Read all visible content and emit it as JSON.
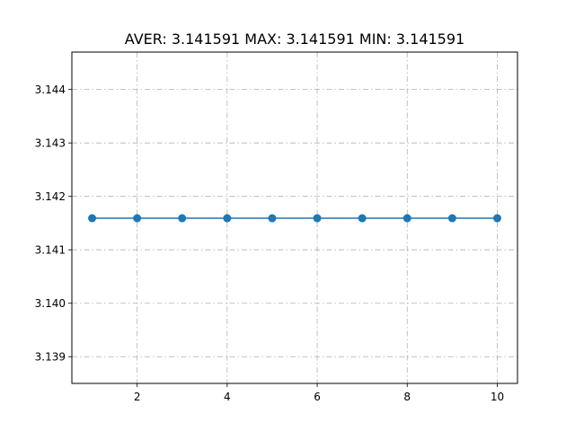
{
  "chart_data": {
    "type": "line",
    "title": "AVER: 3.141591 MAX: 3.141591 MIN: 3.141591",
    "xlabel": "",
    "ylabel": "",
    "x": [
      1,
      2,
      3,
      4,
      5,
      6,
      7,
      8,
      9,
      10
    ],
    "series": [
      {
        "values": [
          3.141591,
          3.141591,
          3.141591,
          3.141591,
          3.141591,
          3.141591,
          3.141591,
          3.141591,
          3.141591,
          3.141591
        ],
        "color": "#1f77b4",
        "marker": "circle"
      }
    ],
    "xlim": [
      0.55,
      10.45
    ],
    "ylim": [
      3.1385,
      3.1447
    ],
    "xticks": [
      2,
      4,
      6,
      8,
      10
    ],
    "xtick_labels": [
      "2",
      "4",
      "6",
      "8",
      "10"
    ],
    "yticks": [
      3.139,
      3.14,
      3.141,
      3.142,
      3.143,
      3.144
    ],
    "ytick_labels": [
      "3.139",
      "3.140",
      "3.141",
      "3.142",
      "3.143",
      "3.144"
    ],
    "grid": true,
    "legend": "none"
  }
}
